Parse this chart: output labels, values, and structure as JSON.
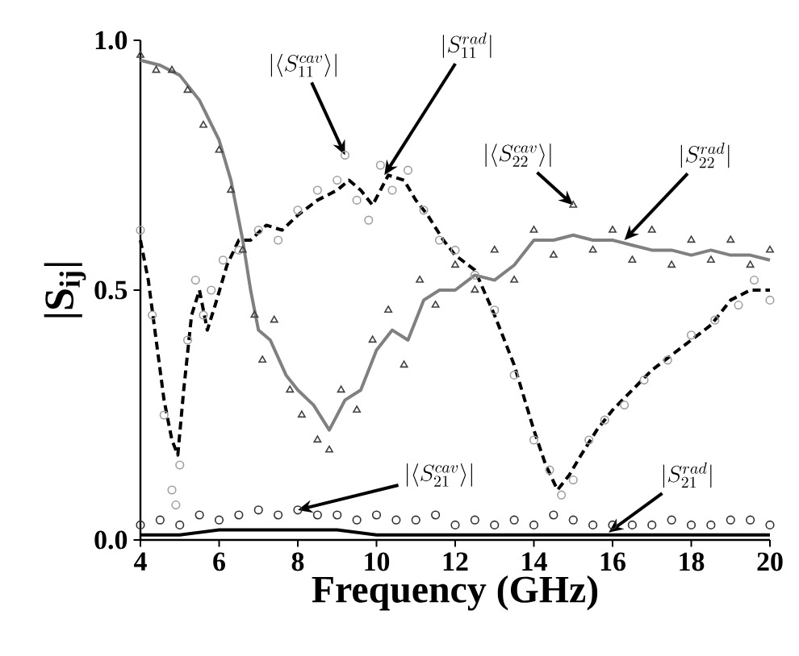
{
  "chart_data": {
    "type": "scatter",
    "xlabel": "Frequency (GHz)",
    "ylabel": "|S$_{ij}$|",
    "xlim": [
      4,
      20
    ],
    "xticks": [
      4,
      6,
      8,
      10,
      12,
      14,
      16,
      18,
      20
    ],
    "ylim": [
      0,
      1.0
    ],
    "yticks": [
      {
        "value": 0,
        "label": "0.0"
      },
      {
        "value": 0.5,
        "label": "0.5"
      },
      {
        "value": 1.0,
        "label": "1.0"
      }
    ],
    "grid": false,
    "series": [
      {
        "marker": "circle",
        "color": "#a0a0a0",
        "x": [
          4,
          4.3,
          4.6,
          4.8,
          4.9,
          5.0,
          5.2,
          5.4,
          5.6,
          5.8,
          6.1,
          6.5,
          7,
          7.5,
          8,
          8.5,
          9,
          9.2,
          9.5,
          9.8,
          10.1,
          10.4,
          10.8,
          11.2,
          11.6,
          12,
          12.5,
          13,
          13.5,
          14,
          14.4,
          14.7,
          15,
          15.4,
          15.8,
          16.3,
          16.8,
          17.4,
          18,
          18.6,
          19.2,
          19.6,
          20
        ],
        "values": [
          0.62,
          0.45,
          0.25,
          0.1,
          0.07,
          0.15,
          0.4,
          0.52,
          0.45,
          0.5,
          0.56,
          0.58,
          0.62,
          0.6,
          0.66,
          0.7,
          0.72,
          0.77,
          0.68,
          0.64,
          0.75,
          0.7,
          0.74,
          0.66,
          0.6,
          0.58,
          0.53,
          0.46,
          0.33,
          0.2,
          0.14,
          0.09,
          0.12,
          0.2,
          0.24,
          0.27,
          0.32,
          0.36,
          0.41,
          0.44,
          0.47,
          0.52,
          0.48
        ]
      },
      {
        "type": "line",
        "line_style": "dashed",
        "color": "#000000",
        "x": [
          4,
          4.2,
          4.4,
          4.6,
          4.8,
          4.95,
          5.1,
          5.3,
          5.5,
          5.7,
          5.9,
          6.2,
          6.5,
          6.8,
          7.2,
          7.6,
          8,
          8.5,
          9,
          9.3,
          9.6,
          9.9,
          10.3,
          10.7,
          11,
          11.3,
          11.7,
          12,
          12.5,
          13,
          13.5,
          14,
          14.3,
          14.6,
          14.9,
          15.2,
          15.6,
          16,
          16.5,
          17,
          17.5,
          18,
          18.5,
          19,
          19.5,
          20
        ],
        "values": [
          0.6,
          0.52,
          0.4,
          0.28,
          0.2,
          0.17,
          0.3,
          0.45,
          0.5,
          0.42,
          0.47,
          0.55,
          0.6,
          0.6,
          0.63,
          0.62,
          0.65,
          0.68,
          0.7,
          0.72,
          0.7,
          0.67,
          0.73,
          0.72,
          0.68,
          0.65,
          0.6,
          0.57,
          0.54,
          0.45,
          0.35,
          0.22,
          0.15,
          0.1,
          0.13,
          0.17,
          0.22,
          0.26,
          0.3,
          0.34,
          0.37,
          0.4,
          0.43,
          0.48,
          0.5,
          0.5
        ]
      },
      {
        "marker": "triangle",
        "color": "#404040",
        "x": [
          4,
          4.4,
          4.8,
          5.2,
          5.6,
          6,
          6.3,
          6.6,
          6.9,
          7.1,
          7.4,
          7.8,
          8.1,
          8.5,
          8.8,
          9.1,
          9.5,
          9.9,
          10.3,
          10.7,
          11.1,
          11.5,
          12,
          12.5,
          13,
          13.5,
          14,
          14.5,
          15,
          15.5,
          16,
          16.5,
          17,
          17.5,
          18,
          18.5,
          19,
          19.5,
          20
        ],
        "values": [
          0.97,
          0.94,
          0.94,
          0.9,
          0.83,
          0.78,
          0.7,
          0.58,
          0.45,
          0.36,
          0.44,
          0.3,
          0.25,
          0.2,
          0.18,
          0.3,
          0.26,
          0.4,
          0.46,
          0.35,
          0.52,
          0.47,
          0.55,
          0.5,
          0.58,
          0.52,
          0.62,
          0.57,
          0.67,
          0.58,
          0.62,
          0.56,
          0.62,
          0.55,
          0.6,
          0.56,
          0.6,
          0.55,
          0.58
        ]
      },
      {
        "type": "line",
        "line_style": "solid",
        "color": "#808080",
        "x": [
          4,
          4.5,
          5,
          5.5,
          6,
          6.3,
          6.6,
          6.8,
          7,
          7.3,
          7.7,
          8,
          8.4,
          8.8,
          9.2,
          9.6,
          10,
          10.4,
          10.8,
          11.2,
          11.6,
          12,
          12.5,
          13,
          13.5,
          14,
          14.5,
          15,
          15.5,
          16,
          16.5,
          17,
          17.5,
          18,
          18.5,
          19,
          19.5,
          20
        ],
        "values": [
          0.96,
          0.95,
          0.93,
          0.88,
          0.8,
          0.72,
          0.6,
          0.5,
          0.42,
          0.4,
          0.33,
          0.3,
          0.27,
          0.22,
          0.28,
          0.3,
          0.38,
          0.42,
          0.4,
          0.48,
          0.5,
          0.5,
          0.53,
          0.52,
          0.55,
          0.6,
          0.6,
          0.61,
          0.6,
          0.6,
          0.59,
          0.58,
          0.58,
          0.57,
          0.58,
          0.57,
          0.57,
          0.56
        ]
      },
      {
        "marker": "circle",
        "color": "#303030",
        "x": [
          4,
          4.5,
          5,
          5.5,
          6,
          6.5,
          7,
          7.5,
          8,
          8.5,
          9,
          9.5,
          10,
          10.5,
          11,
          11.5,
          12,
          12.5,
          13,
          13.5,
          14,
          14.5,
          15,
          15.5,
          16,
          16.5,
          17,
          17.5,
          18,
          18.5,
          19,
          19.5,
          20
        ],
        "values": [
          0.03,
          0.04,
          0.03,
          0.05,
          0.04,
          0.05,
          0.06,
          0.05,
          0.06,
          0.05,
          0.05,
          0.04,
          0.05,
          0.04,
          0.04,
          0.05,
          0.03,
          0.04,
          0.03,
          0.04,
          0.03,
          0.05,
          0.04,
          0.03,
          0.03,
          0.03,
          0.03,
          0.04,
          0.03,
          0.03,
          0.04,
          0.04,
          0.03
        ]
      },
      {
        "type": "line",
        "line_style": "solid",
        "color": "#000000",
        "x": [
          4,
          5,
          6,
          7,
          8,
          9,
          10,
          11,
          12,
          13,
          14,
          15,
          16,
          17,
          18,
          19,
          20
        ],
        "values": [
          0.01,
          0.01,
          0.02,
          0.02,
          0.02,
          0.02,
          0.01,
          0.01,
          0.01,
          0.01,
          0.01,
          0.01,
          0.01,
          0.01,
          0.01,
          0.01,
          0.01
        ]
      }
    ],
    "annotations": [
      {
        "text": "|\\langle S_{11}^{cav}\\rangle|",
        "x": 9.2,
        "y": 0.77
      },
      {
        "text": "|S_{11}^{rad}|",
        "x": 10.2,
        "y": 0.73
      },
      {
        "text": "|\\langle S_{22}^{cav}\\rangle|",
        "x": 15.0,
        "y": 0.67
      },
      {
        "text": "|S_{22}^{rad}|",
        "x": 16.3,
        "y": 0.6
      },
      {
        "text": "|\\langle S_{21}^{cav}\\rangle|",
        "x": 8,
        "y": 0.06
      },
      {
        "text": "|S_{21}^{rad}|",
        "x": 15.9,
        "y": 0.015
      }
    ]
  }
}
